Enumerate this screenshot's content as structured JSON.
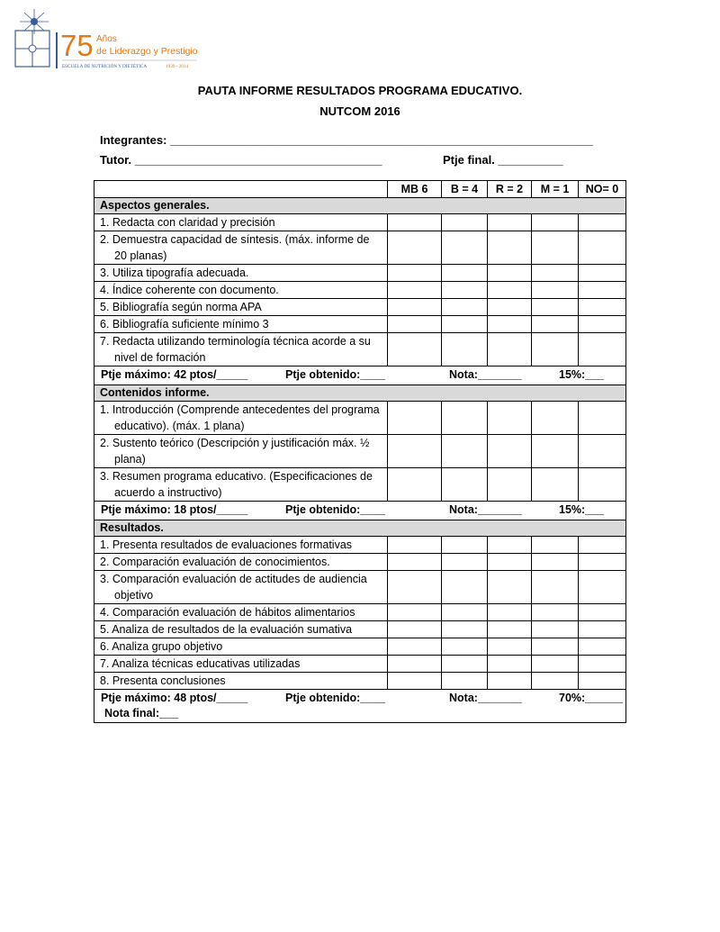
{
  "logo": {
    "number": "75",
    "line1": "Años",
    "line2": "de Liderazgo y Prestigio",
    "school": "Escuela de Nutrición y Dietética",
    "years": "1939 - 2014",
    "colors": {
      "orange": "#e07b1a",
      "blue": "#3b5a9a"
    }
  },
  "title": {
    "line1": "PAUTA INFORME RESULTADOS PROGRAMA EDUCATIVO.",
    "line2": "NUTCOM 2016"
  },
  "fields": {
    "integrantes": "Integrantes: _________________________________________________________________",
    "tutor": "Tutor. ______________________________________",
    "ptje_final": "Ptje final. __________"
  },
  "table": {
    "columns": [
      "MB 6",
      "B = 4",
      "R = 2",
      "M = 1",
      "NO= 0"
    ],
    "sections": [
      {
        "title": "Aspectos generales.",
        "items": [
          "1.  Redacta con claridad y precisión",
          "2.  Demuestra capacidad de síntesis. (máx. informe de 20 planas)",
          "3.  Utiliza tipografía adecuada.",
          "4.  Índice coherente con documento.",
          "5.  Bibliografía según norma APA",
          "6.  Bibliografía suficiente mínimo 3",
          "7.  Redacta utilizando terminología técnica acorde a su nivel de formación"
        ],
        "summary": {
          "max": "Ptje máximo: 42 ptos/_____",
          "obtenido": "Ptje obtenido:____",
          "nota": "Nota:_______",
          "pct": "15%:___"
        }
      },
      {
        "title": "Contenidos informe.",
        "items": [
          "1.  Introducción (Comprende antecedentes del programa educativo). (máx. 1 plana)",
          "2.  Sustento teórico (Descripción y justificación máx. ½ plana)",
          "3.  Resumen programa educativo. (Especificaciones de acuerdo a instructivo)"
        ],
        "summary": {
          "max": "Ptje máximo: 18 ptos/_____",
          "obtenido": "Ptje obtenido:____",
          "nota": "Nota:_______",
          "pct": "15%:___"
        }
      },
      {
        "title": "Resultados.",
        "items": [
          "1.  Presenta resultados de evaluaciones formativas",
          "2.  Comparación evaluación de conocimientos.",
          "3.  Comparación evaluación de actitudes de audiencia objetivo",
          "4.  Comparación evaluación de hábitos alimentarios",
          "5.  Analiza de resultados de la evaluación sumativa",
          "6.  Analiza grupo objetivo",
          "7.  Analiza técnicas educativas utilizadas",
          "8.  Presenta conclusiones"
        ],
        "summary": {
          "max": "Ptje máximo: 48 ptos/_____",
          "obtenido": "Ptje obtenido:____",
          "nota": "Nota:_______",
          "pct": "70%:______",
          "nota_final": "Nota final:___"
        }
      }
    ]
  }
}
